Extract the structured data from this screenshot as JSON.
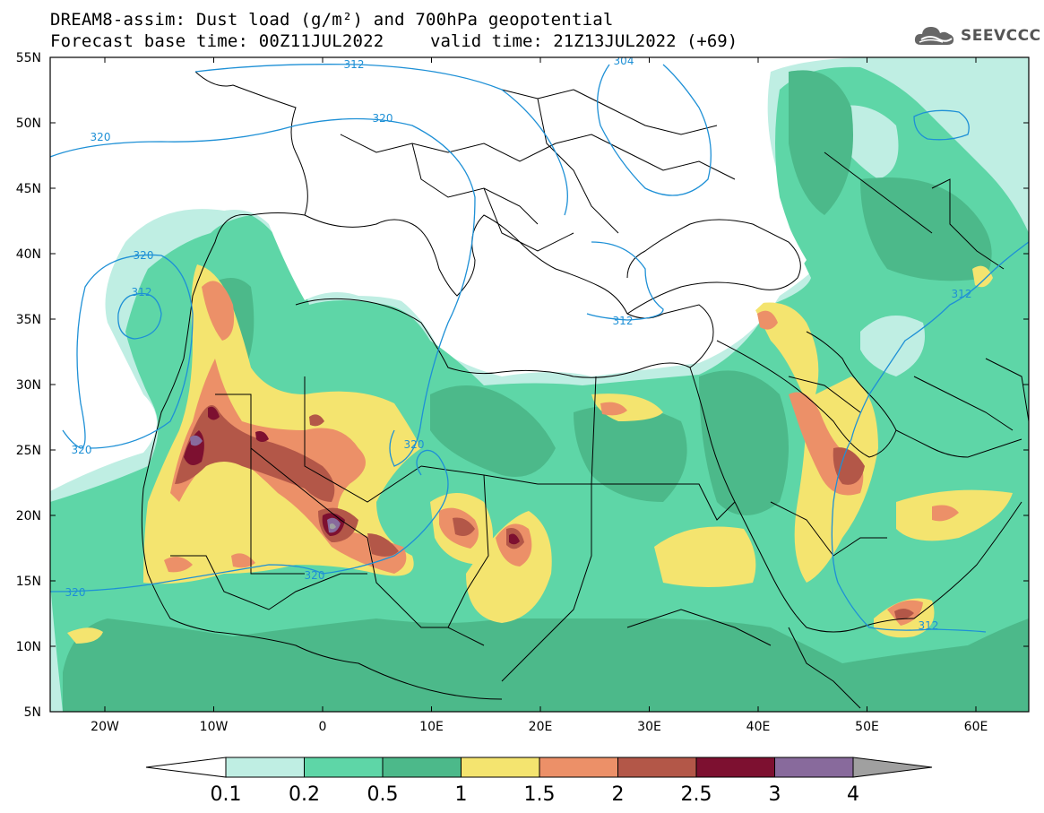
{
  "title": {
    "line1": "DREAM8-assim: Dust load (g/m²) and 700hPa geopotential",
    "line2_left": "Forecast base time: 00Z11JUL2022",
    "line2_right": "valid time: 21Z13JUL2022 (+69)"
  },
  "logo": {
    "text": "SEEVCCC",
    "icon": "cloud-icon"
  },
  "axes": {
    "lat_labels": [
      "55N",
      "50N",
      "45N",
      "40N",
      "35N",
      "30N",
      "25N",
      "20N",
      "15N",
      "10N",
      "5N"
    ],
    "lon_labels": [
      "20W",
      "10W",
      "0",
      "10E",
      "20E",
      "30E",
      "40E",
      "50E",
      "60E"
    ]
  },
  "contour_labels": [
    "312",
    "304",
    "320",
    "320",
    "320",
    "312",
    "320",
    "320",
    "312",
    "320",
    "320",
    "312",
    "312"
  ],
  "colorbar": {
    "labels": [
      "0.1",
      "0.2",
      "0.5",
      "1",
      "1.5",
      "2",
      "2.5",
      "3",
      "4"
    ],
    "colors": [
      "#bfeee3",
      "#5ed6a7",
      "#4cb98a",
      "#f4e46f",
      "#ec9068",
      "#b35748",
      "#7d1030",
      "#886a9c",
      "#a0a0a0"
    ]
  },
  "colors": {
    "ocean": "#ffffff",
    "contour": "#1e90d6",
    "border": "#000000"
  }
}
